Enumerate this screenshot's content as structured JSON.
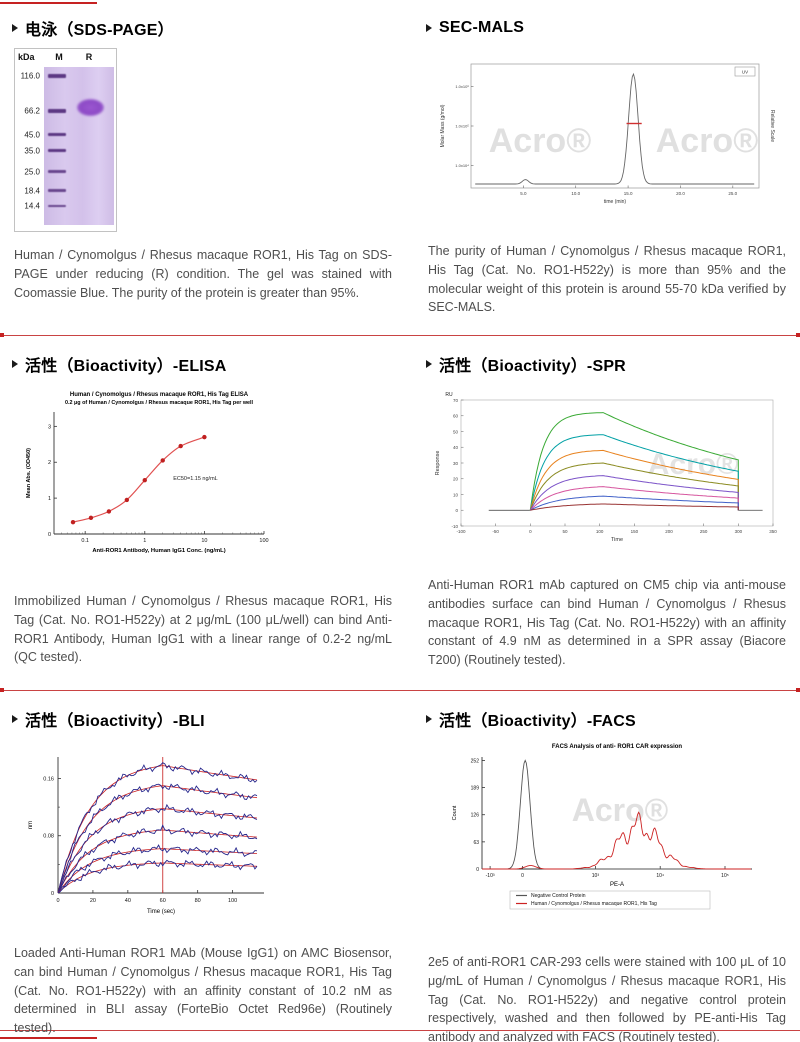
{
  "page": {
    "background": "#ffffff",
    "divider_color": "#c94343",
    "accent_red": "#c62222"
  },
  "sections": [
    {
      "id": "sds-page",
      "title": "电泳（SDS-PAGE）",
      "caption": "Human / Cynomolgus / Rhesus macaque ROR1, His Tag on SDS-PAGE under reducing (R) condition. The gel was stained with Coomassie Blue. The purity of the protein is greater than 95%."
    },
    {
      "id": "sec-mals",
      "title": "SEC-MALS",
      "caption": "The purity of Human / Cynomolgus / Rhesus macaque ROR1, His Tag (Cat. No. RO1-H522y) is more than 95% and the molecular weight of this protein is around 55-70 kDa verified by SEC-MALS."
    },
    {
      "id": "elisa",
      "title": "活性（Bioactivity）-ELISA",
      "caption": "Immobilized Human / Cynomolgus / Rhesus macaque ROR1, His Tag (Cat. No. RO1-H522y) at 2 μg/mL (100 μL/well) can bind Anti-ROR1 Antibody, Human IgG1 with a linear range of 0.2-2 ng/mL (QC tested)."
    },
    {
      "id": "spr",
      "title": "活性（Bioactivity）-SPR",
      "caption": "Anti-Human ROR1 mAb captured on CM5 chip via anti-mouse antibodies surface can bind Human / Cynomolgus / Rhesus macaque ROR1, His Tag (Cat. No. RO1-H522y) with an affinity constant of 4.9 nM as determined in a SPR assay (Biacore T200) (Routinely tested)."
    },
    {
      "id": "bli",
      "title": "活性（Bioactivity）-BLI",
      "caption": "Loaded Anti-Human ROR1 MAb (Mouse IgG1) on AMC Biosensor, can bind Human / Cynomolgus / Rhesus macaque ROR1, His Tag (Cat. No. RO1-H522y) with an affinity constant of 10.2 nM as determined in BLI assay (ForteBio Octet Red96e) (Routinely tested)."
    },
    {
      "id": "facs",
      "title": "活性（Bioactivity）-FACS",
      "caption": "2e5 of anti-ROR1 CAR-293 cells were stained with 100 μL of 10 μg/mL of Human / Cynomolgus / Rhesus macaque ROR1, His Tag (Cat. No. RO1-H522y) and negative control protein respectively, washed and then followed by PE-anti-His Tag antibody and analyzed with FACS (Routinely tested)."
    }
  ],
  "gel": {
    "unit_label": "kDa",
    "lanes": [
      "M",
      "R"
    ],
    "marker_kda": [
      116.0,
      66.2,
      45.0,
      35.0,
      25.0,
      18.4,
      14.4
    ],
    "marker_labels": [
      "116.0",
      "66.2",
      "45.0",
      "35.0",
      "25.0",
      "18.4",
      "14.4"
    ],
    "sample_band_kda": 70,
    "gel_color": "#d6c6eb",
    "band_color": "#57327f",
    "sample_band_color": "#9757cd"
  },
  "chart_data": {
    "sec_mals": {
      "type": "line",
      "xlabel": "time (min)",
      "ylabel_left": "Molar Mass (g/mol)",
      "ylabel_right": "Relative Scale",
      "xlim": [
        0,
        27.5
      ],
      "x_ticks": [
        5,
        10,
        15,
        20,
        25
      ],
      "x_tick_labels": [
        "5.0",
        "10.0",
        "15.0",
        "20.0",
        "25.0"
      ],
      "y_tick_labels_left": [
        "1.0x10⁶",
        "1.0x10⁵",
        "1.0x10⁴"
      ],
      "legend": "UV",
      "peak": {
        "center_min": 15.5,
        "sigma_min": 0.45,
        "rel_height": 1.0
      },
      "minor_bump": {
        "center_min": 5.2,
        "rel_height": 0.04
      },
      "mass_fit_line": {
        "x_start_min": 14.85,
        "x_end_min": 16.3,
        "rel_height": 0.55,
        "color": "#d03030"
      },
      "watermark": "Acro®"
    },
    "elisa": {
      "type": "scatter-line",
      "title_line1": "Human / Cynomolgus / Rhesus macaque ROR1, His Tag ELISA",
      "title_line2": "0.2 μg of Human / Cynomolgus / Rhesus macaque ROR1, His Tag per well",
      "xlabel": "Anti-ROR1 Antibody, Human IgG1 Conc. (ng/mL)",
      "ylabel": "Mean Abs. (OD450)",
      "x_scale": "log",
      "xlim": [
        0.03,
        100
      ],
      "ylim": [
        0,
        3.4
      ],
      "x_ticks": [
        0.1,
        1,
        10,
        100
      ],
      "x_tick_labels": [
        "0.1",
        "1",
        "10",
        "100"
      ],
      "y_ticks": [
        0,
        1,
        2,
        3
      ],
      "annotation": "EC50=1.15 ng/mL",
      "line_color": "#e05050",
      "marker_color": "#c02020",
      "points": {
        "x": [
          0.0625,
          0.125,
          0.25,
          0.5,
          1,
          2,
          4,
          10
        ],
        "y": [
          0.33,
          0.45,
          0.63,
          0.95,
          1.5,
          2.05,
          2.45,
          2.7
        ]
      }
    },
    "spr": {
      "type": "line",
      "corner_label": "RU",
      "ylabel": "Response",
      "xlabel": "Time",
      "xlim": [
        -100,
        350
      ],
      "ylim": [
        -10,
        70
      ],
      "x_ticks": [
        -100,
        -50,
        0,
        50,
        100,
        150,
        200,
        250,
        300,
        350
      ],
      "y_ticks": [
        -10,
        0,
        10,
        20,
        30,
        40,
        50,
        60,
        70
      ],
      "association_end_s": 105,
      "dissociation_end_s": 300,
      "series": [
        {
          "rmax_ru": 62,
          "color": "#3aaa35"
        },
        {
          "rmax_ru": 48,
          "color": "#00a0a5"
        },
        {
          "rmax_ru": 38,
          "color": "#e8821e"
        },
        {
          "rmax_ru": 30,
          "color": "#8a8a20"
        },
        {
          "rmax_ru": 22,
          "color": "#7b52c8"
        },
        {
          "rmax_ru": 15,
          "color": "#d6549e"
        },
        {
          "rmax_ru": 9,
          "color": "#4060c8"
        },
        {
          "rmax_ru": 4,
          "color": "#993333"
        }
      ],
      "watermark": "Acro®"
    },
    "bli": {
      "type": "line",
      "ylabel": "nm",
      "xlabel": "Time (sec)",
      "xlim": [
        0,
        118
      ],
      "ylim": [
        0,
        0.19
      ],
      "x_ticks": [
        0,
        20,
        40,
        60,
        80,
        100
      ],
      "y_ticks": [
        0,
        0.08,
        0.16
      ],
      "y_tick_labels": [
        "0",
        "0.08",
        "0.16"
      ],
      "association_end_s": 60,
      "series_peaks_nm": [
        0.178,
        0.15,
        0.118,
        0.088,
        0.062,
        0.042
      ],
      "data_color": "#26268c",
      "fit_color": "#cc2222",
      "marker_line": {
        "x_s": 60,
        "color": "#cc3333"
      }
    },
    "facs": {
      "type": "histogram",
      "title": "FACS Analysis of anti- ROR1 CAR expression",
      "xlabel": "PE-A",
      "ylabel": "Count",
      "y_ticks": [
        0,
        63,
        126,
        189,
        252
      ],
      "x_tick_labels": [
        "-10³",
        "0",
        "10³",
        "10⁴",
        "10⁵"
      ],
      "series": [
        {
          "name": "Negative Control Protein",
          "color": "#555555",
          "peak_count": 252,
          "peak_center_frac": 0.16,
          "width_frac": 0.018
        },
        {
          "name": "Human / Cynomolgus / Rhesus macaque ROR1, His Tag",
          "color": "#cc2222",
          "peak_count": 100,
          "peak_center_frac": 0.58,
          "width_frac": 0.075
        }
      ],
      "watermark": "Acro®"
    }
  }
}
